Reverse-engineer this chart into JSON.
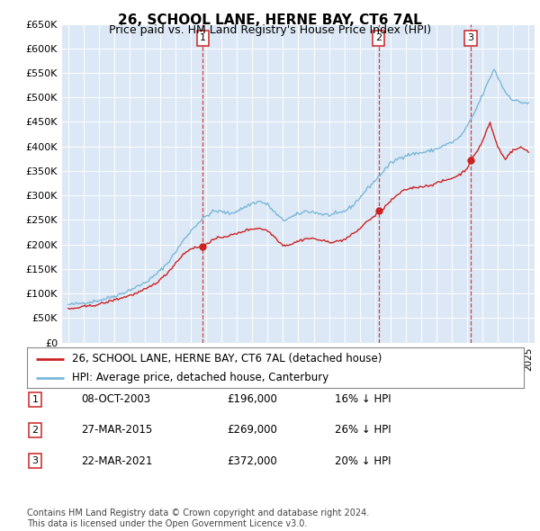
{
  "title": "26, SCHOOL LANE, HERNE BAY, CT6 7AL",
  "subtitle": "Price paid vs. HM Land Registry's House Price Index (HPI)",
  "ylim": [
    0,
    650000
  ],
  "yticks": [
    0,
    50000,
    100000,
    150000,
    200000,
    250000,
    300000,
    350000,
    400000,
    450000,
    500000,
    550000,
    600000,
    650000
  ],
  "ytick_labels": [
    "£0",
    "£50K",
    "£100K",
    "£150K",
    "£200K",
    "£250K",
    "£300K",
    "£350K",
    "£400K",
    "£450K",
    "£500K",
    "£550K",
    "£600K",
    "£650K"
  ],
  "hpi_color": "#7ab8d9",
  "price_color": "#cc2222",
  "dashed_color": "#cc2222",
  "fig_bg": "#ffffff",
  "plot_bg": "#dce8f5",
  "transactions": [
    {
      "num": 1,
      "date": "08-OCT-2003",
      "price": 196000,
      "pct": "16%",
      "x": 2003.78
    },
    {
      "num": 2,
      "date": "27-MAR-2015",
      "price": 269000,
      "pct": "26%",
      "x": 2015.23
    },
    {
      "num": 3,
      "date": "22-MAR-2021",
      "price": 372000,
      "pct": "20%",
      "x": 2021.23
    }
  ],
  "legend_line1": "26, SCHOOL LANE, HERNE BAY, CT6 7AL (detached house)",
  "legend_line2": "HPI: Average price, detached house, Canterbury",
  "footnote": "Contains HM Land Registry data © Crown copyright and database right 2024.\nThis data is licensed under the Open Government Licence v3.0.",
  "hpi_waypoints": [
    [
      1995.0,
      77000
    ],
    [
      1995.5,
      78500
    ],
    [
      1996.0,
      81000
    ],
    [
      1996.5,
      83000
    ],
    [
      1997.0,
      86000
    ],
    [
      1997.5,
      90000
    ],
    [
      1998.0,
      95000
    ],
    [
      1998.5,
      100000
    ],
    [
      1999.0,
      107000
    ],
    [
      1999.5,
      114000
    ],
    [
      2000.0,
      122000
    ],
    [
      2000.5,
      133000
    ],
    [
      2001.0,
      147000
    ],
    [
      2001.5,
      163000
    ],
    [
      2002.0,
      185000
    ],
    [
      2002.5,
      208000
    ],
    [
      2003.0,
      228000
    ],
    [
      2003.5,
      245000
    ],
    [
      2004.0,
      258000
    ],
    [
      2004.5,
      268000
    ],
    [
      2005.0,
      267000
    ],
    [
      2005.5,
      263000
    ],
    [
      2006.0,
      268000
    ],
    [
      2006.5,
      276000
    ],
    [
      2007.0,
      284000
    ],
    [
      2007.5,
      288000
    ],
    [
      2008.0,
      281000
    ],
    [
      2008.5,
      264000
    ],
    [
      2009.0,
      249000
    ],
    [
      2009.5,
      255000
    ],
    [
      2010.0,
      262000
    ],
    [
      2010.5,
      268000
    ],
    [
      2011.0,
      266000
    ],
    [
      2011.5,
      262000
    ],
    [
      2012.0,
      260000
    ],
    [
      2012.5,
      262000
    ],
    [
      2013.0,
      268000
    ],
    [
      2013.5,
      278000
    ],
    [
      2014.0,
      295000
    ],
    [
      2014.5,
      314000
    ],
    [
      2015.0,
      330000
    ],
    [
      2015.5,
      348000
    ],
    [
      2016.0,
      365000
    ],
    [
      2016.5,
      375000
    ],
    [
      2017.0,
      382000
    ],
    [
      2017.5,
      385000
    ],
    [
      2018.0,
      387000
    ],
    [
      2018.5,
      390000
    ],
    [
      2019.0,
      395000
    ],
    [
      2019.5,
      402000
    ],
    [
      2020.0,
      408000
    ],
    [
      2020.5,
      418000
    ],
    [
      2021.0,
      440000
    ],
    [
      2021.5,
      470000
    ],
    [
      2022.0,
      505000
    ],
    [
      2022.5,
      540000
    ],
    [
      2022.75,
      558000
    ],
    [
      2023.0,
      542000
    ],
    [
      2023.5,
      510000
    ],
    [
      2024.0,
      495000
    ],
    [
      2024.5,
      490000
    ],
    [
      2025.0,
      488000
    ]
  ],
  "price_waypoints": [
    [
      1995.0,
      68000
    ],
    [
      1995.5,
      70000
    ],
    [
      1996.0,
      73000
    ],
    [
      1996.5,
      75000
    ],
    [
      1997.0,
      78000
    ],
    [
      1997.5,
      82000
    ],
    [
      1998.0,
      87000
    ],
    [
      1998.5,
      91000
    ],
    [
      1999.0,
      96000
    ],
    [
      1999.5,
      101000
    ],
    [
      2000.0,
      108000
    ],
    [
      2000.5,
      117000
    ],
    [
      2001.0,
      128000
    ],
    [
      2001.5,
      143000
    ],
    [
      2002.0,
      162000
    ],
    [
      2002.5,
      180000
    ],
    [
      2003.0,
      192000
    ],
    [
      2003.78,
      196000
    ],
    [
      2004.0,
      202000
    ],
    [
      2004.5,
      210000
    ],
    [
      2005.0,
      215000
    ],
    [
      2005.5,
      218000
    ],
    [
      2006.0,
      222000
    ],
    [
      2006.5,
      228000
    ],
    [
      2007.0,
      232000
    ],
    [
      2007.5,
      233000
    ],
    [
      2008.0,
      228000
    ],
    [
      2008.5,
      214000
    ],
    [
      2009.0,
      198000
    ],
    [
      2009.5,
      200000
    ],
    [
      2010.0,
      207000
    ],
    [
      2010.5,
      212000
    ],
    [
      2011.0,
      212000
    ],
    [
      2011.5,
      208000
    ],
    [
      2012.0,
      205000
    ],
    [
      2012.5,
      206000
    ],
    [
      2013.0,
      210000
    ],
    [
      2013.5,
      220000
    ],
    [
      2014.0,
      232000
    ],
    [
      2014.5,
      248000
    ],
    [
      2015.0,
      258000
    ],
    [
      2015.23,
      269000
    ],
    [
      2015.5,
      272000
    ],
    [
      2016.0,
      288000
    ],
    [
      2016.5,
      302000
    ],
    [
      2017.0,
      312000
    ],
    [
      2017.5,
      316000
    ],
    [
      2018.0,
      318000
    ],
    [
      2018.5,
      320000
    ],
    [
      2019.0,
      325000
    ],
    [
      2019.5,
      330000
    ],
    [
      2020.0,
      335000
    ],
    [
      2020.5,
      342000
    ],
    [
      2021.0,
      355000
    ],
    [
      2021.23,
      372000
    ],
    [
      2021.5,
      382000
    ],
    [
      2022.0,
      410000
    ],
    [
      2022.3,
      435000
    ],
    [
      2022.5,
      448000
    ],
    [
      2022.75,
      422000
    ],
    [
      2023.0,
      400000
    ],
    [
      2023.3,
      382000
    ],
    [
      2023.5,
      375000
    ],
    [
      2023.75,
      385000
    ],
    [
      2024.0,
      392000
    ],
    [
      2024.5,
      398000
    ],
    [
      2025.0,
      390000
    ]
  ]
}
